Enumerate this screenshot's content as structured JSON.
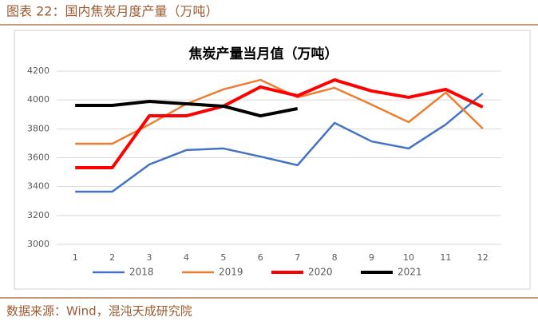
{
  "header": "图表 22：国内焦炭月度产量（万吨）",
  "source": "数据来源：Wind，混沌天成研究院",
  "chart_data": {
    "type": "line",
    "title": "焦炭产量当月值（万吨）",
    "categories": [
      "1",
      "2",
      "3",
      "4",
      "5",
      "6",
      "7",
      "8",
      "9",
      "10",
      "11",
      "12"
    ],
    "series": [
      {
        "name": "2018",
        "color": "#4472c4",
        "width": 2.5,
        "values": [
          3365,
          3365,
          3553,
          3653,
          3664,
          3608,
          3548,
          3841,
          3713,
          3664,
          3830,
          4045
        ]
      },
      {
        "name": "2019",
        "color": "#ed7d31",
        "width": 2.5,
        "values": [
          3697,
          3697,
          3830,
          3973,
          4073,
          4139,
          4018,
          4084,
          3968,
          3846,
          4051,
          3802
        ]
      },
      {
        "name": "2020",
        "color": "#ff0000",
        "width": 4,
        "values": [
          3531,
          3531,
          3890,
          3890,
          3957,
          4090,
          4029,
          4139,
          4062,
          4018,
          4073,
          3951
        ]
      },
      {
        "name": "2021",
        "color": "#000000",
        "width": 4,
        "values": [
          3962,
          3962,
          3990,
          3973,
          3957,
          3890,
          3940,
          null,
          null,
          null,
          null,
          null
        ]
      }
    ],
    "ylim": [
      3000,
      4200
    ],
    "yticks": [
      3000,
      3200,
      3400,
      3600,
      3800,
      4000,
      4200
    ],
    "grid": true,
    "legend": "bottom"
  }
}
